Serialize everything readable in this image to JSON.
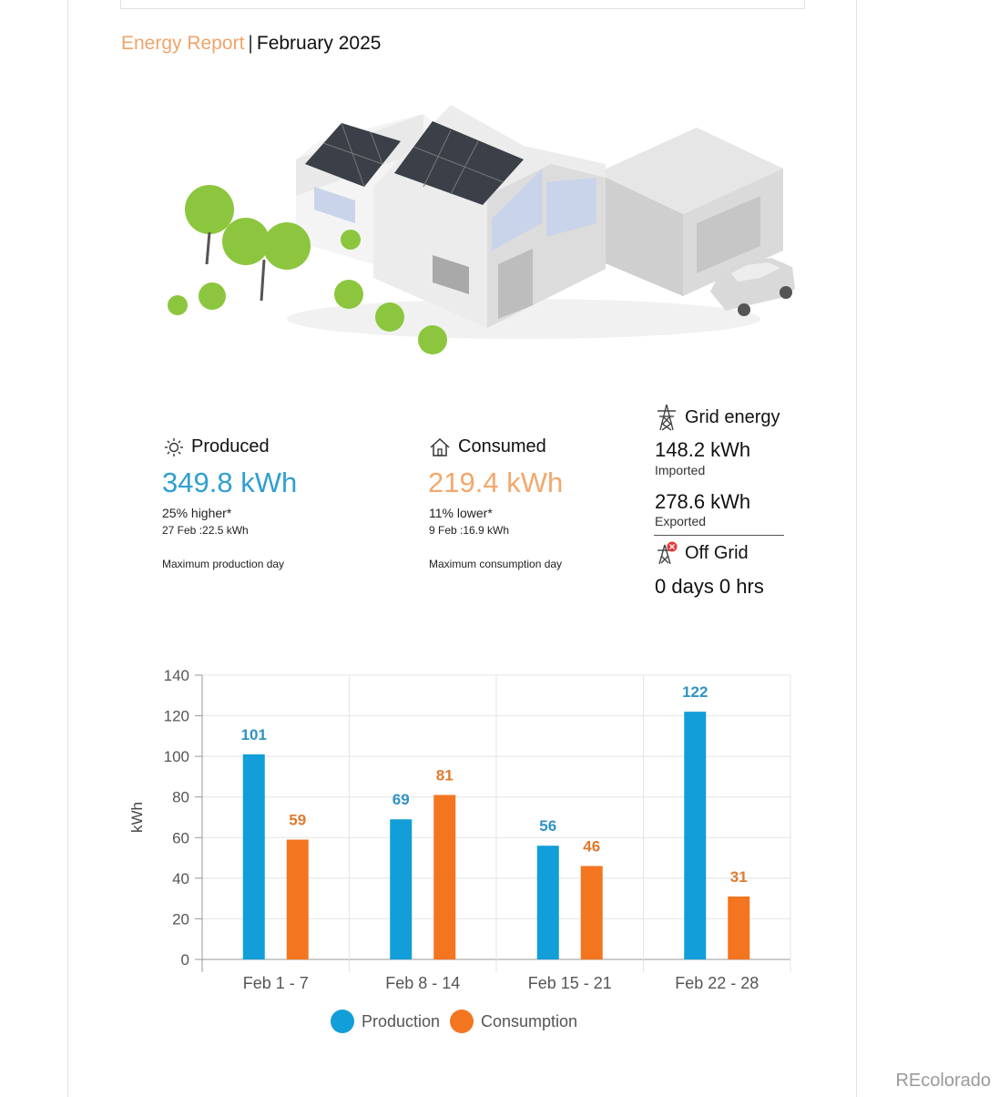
{
  "header": {
    "title_accent": "Energy Report",
    "separator": "|",
    "month": "February 2025"
  },
  "produced": {
    "label": "Produced",
    "value": "349.8 kWh",
    "comparison": "25% higher*",
    "max_day": "27 Feb :22.5 kWh",
    "max_label": "Maximum production day",
    "icon": "sun-icon"
  },
  "consumed": {
    "label": "Consumed",
    "value": "219.4 kWh",
    "comparison": "11% lower*",
    "max_day": "9 Feb :16.9 kWh",
    "max_label": "Maximum consumption day",
    "icon": "house-icon"
  },
  "grid": {
    "label": "Grid energy",
    "imported_value": "148.2 kWh",
    "imported_label": "Imported",
    "exported_value": "278.6 kWh",
    "exported_label": "Exported",
    "icon": "power-pylon-icon"
  },
  "off_grid": {
    "label": "Off Grid",
    "value": "0 days 0 hrs",
    "icon": "power-pylon-off-icon"
  },
  "colors": {
    "accent_orange": "#f0a46b",
    "produced_blue": "#2f9fd3",
    "consumed_orange": "#f4a76c",
    "production_bar": "#129ed8",
    "consumption_bar": "#f37520"
  },
  "chart_data": {
    "type": "bar",
    "categories": [
      "Feb 1 - 7",
      "Feb 8 - 14",
      "Feb 15 - 21",
      "Feb 22 - 28"
    ],
    "series": [
      {
        "name": "Production",
        "values": [
          101,
          69,
          56,
          122
        ],
        "color": "#129ed8"
      },
      {
        "name": "Consumption",
        "values": [
          59,
          81,
          46,
          31
        ],
        "color": "#f37520"
      }
    ],
    "ylabel": "kWh",
    "ylim": [
      0,
      140
    ],
    "yticks": [
      0,
      20,
      40,
      60,
      80,
      100,
      120,
      140
    ],
    "grid": true,
    "legend": "bottom"
  },
  "watermark": "REcolorado"
}
